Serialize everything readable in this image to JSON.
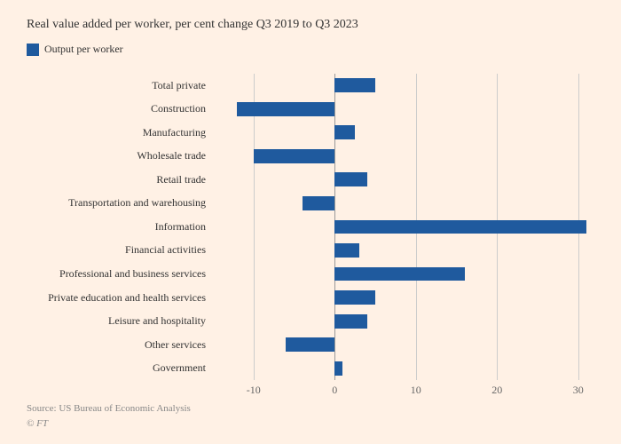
{
  "subtitle": "Real value added per worker, per cent change Q3 2019 to Q3 2023",
  "legend": {
    "label": "Output per worker",
    "color": "#1f5a9e"
  },
  "chart": {
    "type": "bar-horizontal",
    "background_color": "#fff1e5",
    "bar_color": "#1f5a9e",
    "grid_color": "#cccccc",
    "zero_line_color": "#999999",
    "label_color": "#333333",
    "tick_color": "#666666",
    "label_fontsize": 12,
    "xmin": -15,
    "xmax": 32,
    "xticks": [
      -10,
      0,
      10,
      20,
      30
    ],
    "categories": [
      {
        "label": "Total private",
        "value": 5
      },
      {
        "label": "Construction",
        "value": -12
      },
      {
        "label": "Manufacturing",
        "value": 2.5
      },
      {
        "label": "Wholesale trade",
        "value": -10
      },
      {
        "label": "Retail trade",
        "value": 4
      },
      {
        "label": "Transportation and warehousing",
        "value": -4
      },
      {
        "label": "Information",
        "value": 31
      },
      {
        "label": "Financial activities",
        "value": 3
      },
      {
        "label": "Professional and business services",
        "value": 16
      },
      {
        "label": "Private education and health services",
        "value": 5
      },
      {
        "label": "Leisure and hospitality",
        "value": 4
      },
      {
        "label": "Other services",
        "value": -6
      },
      {
        "label": "Government",
        "value": 1
      }
    ]
  },
  "source": "Source: US Bureau of Economic Analysis",
  "copyright": "© FT"
}
